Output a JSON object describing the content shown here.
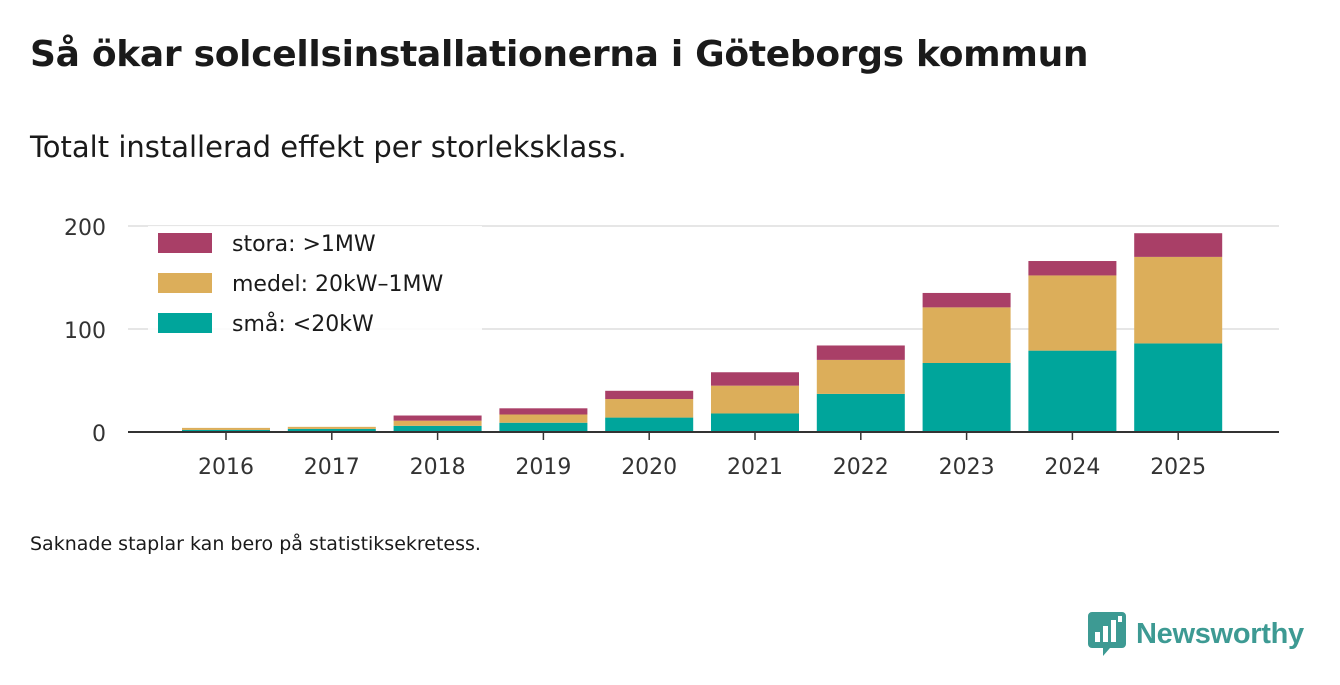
{
  "title": "Så ökar solcellsinstallationerna i Göteborgs kommun",
  "subtitle": "Totalt installerad effekt per storleksklass.",
  "footnote": "Saknade staplar kan bero på statistiksekretess.",
  "brand": {
    "name": "Newsworthy",
    "color": "#3d9a93",
    "icon": "newsworthy-bar-chart-icon"
  },
  "chart_data": {
    "type": "bar",
    "stacked": true,
    "categories": [
      "2016",
      "2017",
      "2018",
      "2019",
      "2020",
      "2021",
      "2022",
      "2023",
      "2024",
      "2025"
    ],
    "series": [
      {
        "name": "små: <20kW",
        "color": "#00a59b",
        "values": [
          2,
          3,
          6,
          9,
          14,
          18,
          37,
          67,
          79,
          86
        ]
      },
      {
        "name": "medel: 20kW–1MW",
        "color": "#dcae5a",
        "values": [
          2,
          2,
          5,
          8,
          18,
          27,
          33,
          54,
          73,
          84
        ]
      },
      {
        "name": "stora: >1MW",
        "color": "#a93f67",
        "values": [
          0,
          0,
          5,
          6,
          8,
          13,
          14,
          14,
          14,
          23
        ]
      }
    ],
    "legend_order": [
      "stora: >1MW",
      "medel: 20kW–1MW",
      "små: <20kW"
    ],
    "legend_position": "top-left",
    "ylim": [
      0,
      200
    ],
    "yticks": [
      0,
      100,
      200
    ],
    "grid": true,
    "xlabel": "",
    "ylabel": ""
  }
}
